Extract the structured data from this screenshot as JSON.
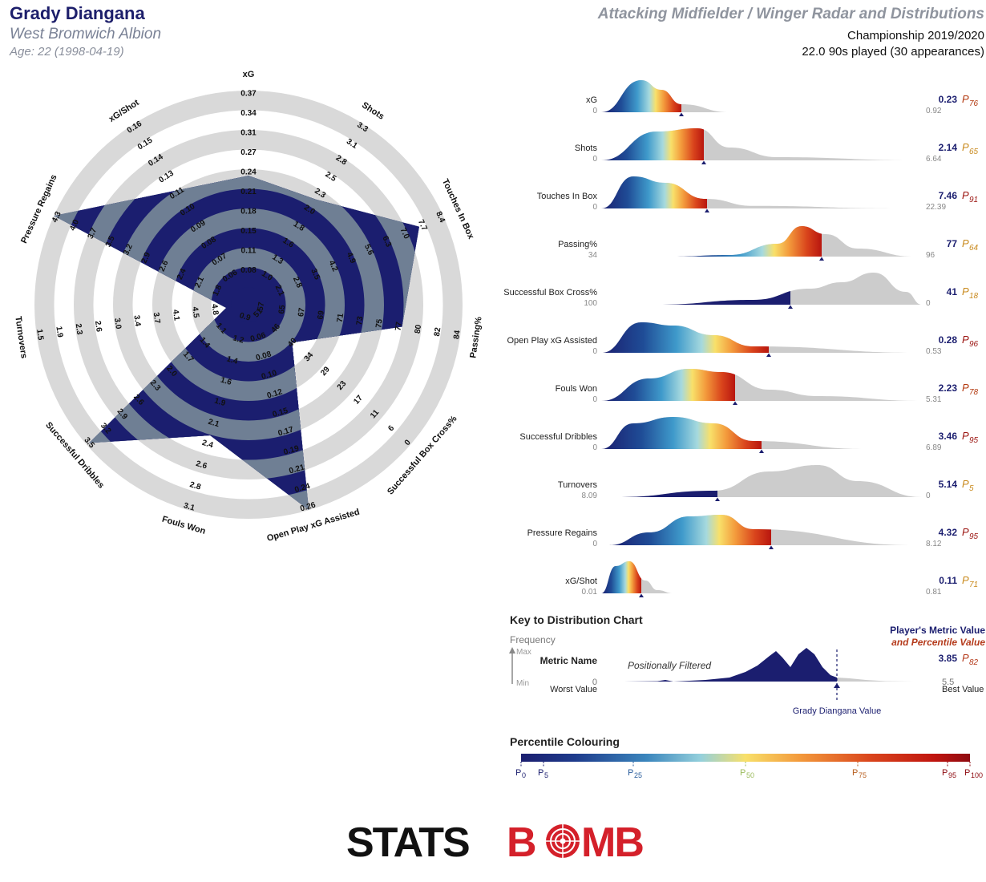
{
  "header": {
    "player_name": "Grady Diangana",
    "club": "West Bromwich Albion",
    "age": "Age: 22 (1998-04-19)",
    "title": "Attacking Midfielder / Winger Radar and Distributions",
    "competition": "Championship 2019/2020",
    "minutes": "22.0 90s played (30 appearances)"
  },
  "colors": {
    "navy": "#1b1e6f",
    "radar_fill": "#6f7f94",
    "ring_grey": "#d9d9d9",
    "dist_grey": "#cccccc",
    "percentile_low": "#1b1e6f",
    "percentile_mid": "#f8e06a",
    "percentile_high": "#8e0a10"
  },
  "chart_data": [
    {
      "type": "radar",
      "axes": [
        {
          "name": "xG",
          "ticks": [
            "0.08",
            "0.11",
            "0.15",
            "0.18",
            "0.21",
            "0.24",
            "0.27",
            "0.31",
            "0.34",
            "0.37"
          ],
          "value": 0.23
        },
        {
          "name": "Shots",
          "ticks": [
            "1.0",
            "1.3",
            "1.6",
            "1.8",
            "2.0",
            "2.3",
            "2.5",
            "2.8",
            "3.1",
            "3.3"
          ],
          "value": 2.14
        },
        {
          "name": "Touches In Box",
          "ticks": [
            "2.1",
            "2.8",
            "3.5",
            "4.2",
            "4.9",
            "5.6",
            "6.3",
            "7.0",
            "7.7",
            "8.4"
          ],
          "value": 7.46
        },
        {
          "name": "Passing%",
          "ticks": [
            "65",
            "67",
            "69",
            "71",
            "73",
            "75",
            "77",
            "80",
            "82",
            "84"
          ],
          "value": 77
        },
        {
          "name": "Successful Box Cross%",
          "ticks": [
            "46",
            "40",
            "34",
            "29",
            "23",
            "17",
            "11",
            "6",
            "0"
          ],
          "value": 41
        },
        {
          "name": "Open Play xG Assisted",
          "ticks": [
            "0.06",
            "0.08",
            "0.10",
            "0.12",
            "0.15",
            "0.17",
            "0.19",
            "0.21",
            "0.24",
            "0.26"
          ],
          "value": 0.28
        },
        {
          "name": "Fouls Won",
          "ticks": [
            "1.2",
            "1.4",
            "1.6",
            "1.9",
            "2.1",
            "2.4",
            "2.6",
            "2.8",
            "3.1"
          ],
          "value": 2.23
        },
        {
          "name": "Successful Dribbles",
          "ticks": [
            "1.1",
            "1.4",
            "1.7",
            "2.0",
            "2.3",
            "2.6",
            "2.9",
            "3.2",
            "3.5"
          ],
          "value": 3.46
        },
        {
          "name": "Turnovers",
          "ticks": [
            "4.8",
            "4.5",
            "4.1",
            "3.7",
            "3.4",
            "3.0",
            "2.6",
            "2.3",
            "1.9",
            "1.5"
          ],
          "value": 5.14
        },
        {
          "name": "Pressure Regains",
          "ticks": [
            "1.8",
            "2.1",
            "2.4",
            "2.6",
            "2.9",
            "3.2",
            "3.5",
            "3.7",
            "4.0",
            "4.3"
          ],
          "value": 4.32
        },
        {
          "name": "xG/Shot",
          "ticks": [
            "0.06",
            "0.07",
            "0.08",
            "0.09",
            "0.10",
            "0.11",
            "0.13",
            "0.14",
            "0.15",
            "0.16"
          ],
          "value": 0.11
        }
      ],
      "extra_ticks": {
        "Successful Box Cross%": [
          "51"
        ],
        "Fouls Won": [
          "0.9"
        ],
        "Passing%": [
          "57"
        ]
      }
    },
    {
      "type": "area",
      "title": "Distributions",
      "metrics": [
        {
          "name": "xG",
          "value": "0.23",
          "pct": "76",
          "min": "0",
          "max": "0.92",
          "reversed": false
        },
        {
          "name": "Shots",
          "value": "2.14",
          "pct": "65",
          "min": "0",
          "max": "6.64",
          "reversed": false
        },
        {
          "name": "Touches In Box",
          "value": "7.46",
          "pct": "91",
          "min": "0",
          "max": "22.39",
          "reversed": false
        },
        {
          "name": "Passing%",
          "value": "77",
          "pct": "64",
          "min": "34",
          "max": "96",
          "reversed": false
        },
        {
          "name": "Successful Box Cross%",
          "value": "41",
          "pct": "18",
          "min": "100",
          "max": "0",
          "reversed": true
        },
        {
          "name": "Open Play xG Assisted",
          "value": "0.28",
          "pct": "96",
          "min": "0",
          "max": "0.53",
          "reversed": false
        },
        {
          "name": "Fouls Won",
          "value": "2.23",
          "pct": "78",
          "min": "0",
          "max": "5.31",
          "reversed": false
        },
        {
          "name": "Successful Dribbles",
          "value": "3.46",
          "pct": "95",
          "min": "0",
          "max": "6.89",
          "reversed": false
        },
        {
          "name": "Turnovers",
          "value": "5.14",
          "pct": "5",
          "min": "8.09",
          "max": "0",
          "reversed": true
        },
        {
          "name": "Pressure Regains",
          "value": "4.32",
          "pct": "95",
          "min": "0",
          "max": "8.12",
          "reversed": false
        },
        {
          "name": "xG/Shot",
          "value": "0.11",
          "pct": "71",
          "min": "0.01",
          "max": "0.81",
          "reversed": false
        }
      ]
    }
  ],
  "key": {
    "title": "Key to Distribution Chart",
    "frequency": "Frequency",
    "max": "Max",
    "min": "Min",
    "metric_name": "Metric Name",
    "positionally_filtered": "Positionally Filtered",
    "worst_zero": "0",
    "worst": "Worst Value",
    "best_value": "5.5",
    "best": "Best Value",
    "metric_value_label": "Player's Metric Value",
    "percentile_label": "and Percentile Value",
    "example_value": "3.85",
    "example_pct": "82",
    "player_value_label": "Grady Diangana Value"
  },
  "percentile_colouring": {
    "title": "Percentile Colouring",
    "ticks": [
      "0",
      "5",
      "25",
      "50",
      "75",
      "95",
      "100"
    ],
    "prefix": "P"
  },
  "logo": {
    "text_a": "STATS",
    "text_b": "B",
    "text_c": "MB"
  }
}
